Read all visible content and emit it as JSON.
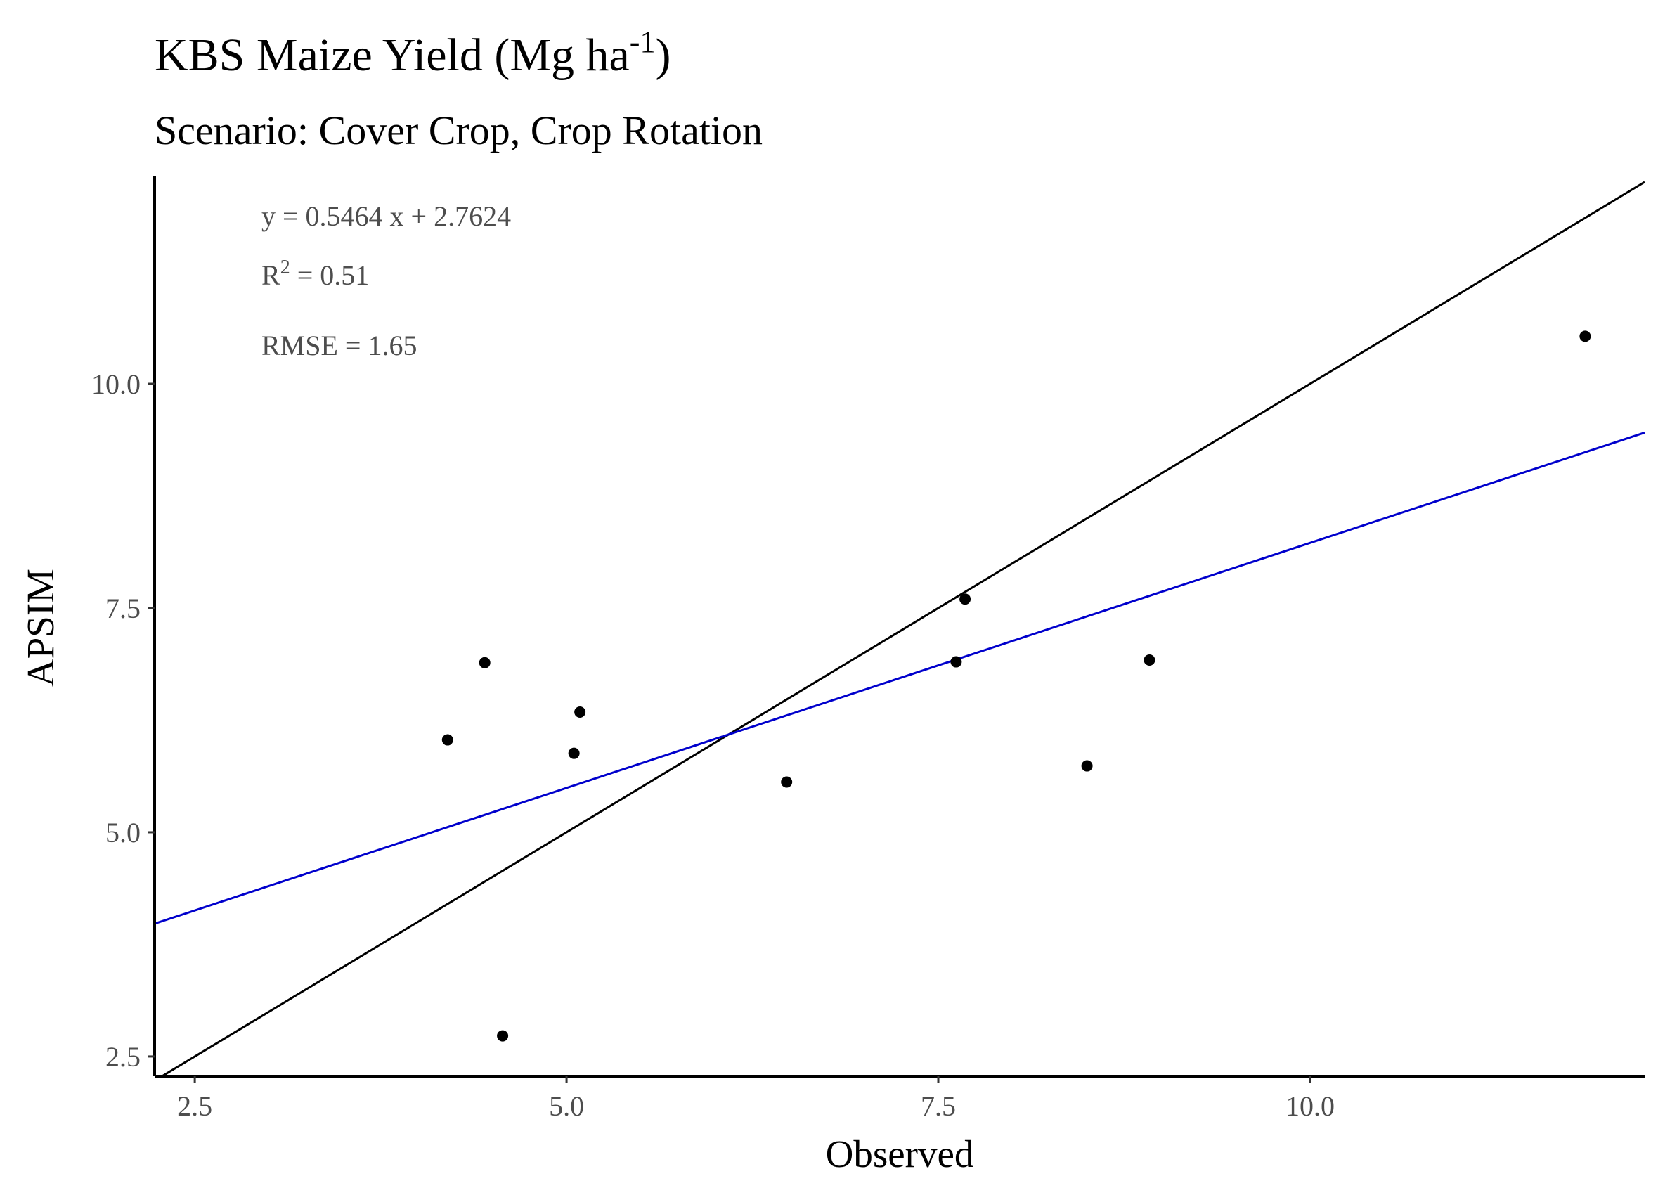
{
  "chart_data": {
    "type": "scatter",
    "title": "KBS Maize Yield (Mg ha",
    "title_sup": "-1",
    "title_end": ")",
    "subtitle": "Scenario: Cover Crop, Crop Rotation",
    "xlabel": "Observed",
    "ylabel": "APSIM",
    "xlim": [
      2.23,
      12.25
    ],
    "ylim": [
      2.28,
      12.32
    ],
    "xticks": [
      2.5,
      5.0,
      7.5,
      10.0
    ],
    "xtick_labels": [
      "2.5",
      "5.0",
      "7.5",
      "10.0"
    ],
    "yticks": [
      2.5,
      5.0,
      7.5,
      10.0
    ],
    "ytick_labels": [
      "2.5",
      "5.0",
      "7.5",
      "10.0"
    ],
    "grid": false,
    "points": [
      {
        "x": 4.2,
        "y": 6.03
      },
      {
        "x": 4.45,
        "y": 6.89
      },
      {
        "x": 4.57,
        "y": 2.73
      },
      {
        "x": 5.05,
        "y": 5.88
      },
      {
        "x": 5.09,
        "y": 6.34
      },
      {
        "x": 6.48,
        "y": 5.56
      },
      {
        "x": 7.62,
        "y": 6.9
      },
      {
        "x": 7.68,
        "y": 7.6
      },
      {
        "x": 8.5,
        "y": 5.74
      },
      {
        "x": 8.92,
        "y": 6.92
      },
      {
        "x": 11.85,
        "y": 10.53
      }
    ],
    "regression": {
      "slope": 0.5464,
      "intercept": 2.7624,
      "color": "#0000cc"
    },
    "identity_line": {
      "slope": 1,
      "intercept": 0,
      "color": "#000000"
    },
    "annotations": {
      "equation": "y = 0.5464 x +  2.7624",
      "r2_prefix": "R",
      "r2_sup": "2",
      "r2_value": " = 0.51",
      "rmse": "RMSE = 1.65"
    },
    "point_color": "#000000"
  }
}
